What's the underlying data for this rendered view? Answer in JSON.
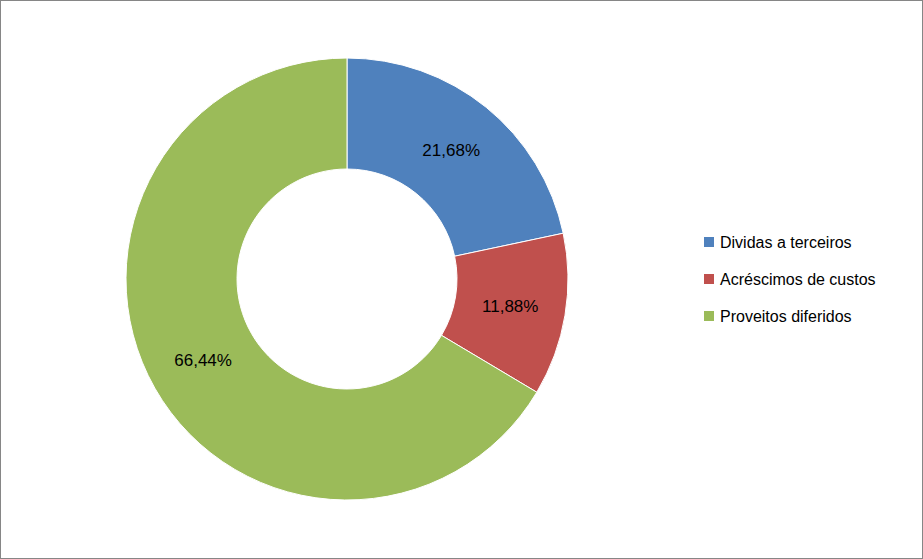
{
  "chart_data": {
    "type": "donut",
    "categories": [
      "Dividas a terceiros",
      "Acréscimos de custos",
      "Proveitos diferidos"
    ],
    "values": [
      21.68,
      11.88,
      66.44
    ],
    "value_labels": [
      "21,68%",
      "11,88%",
      "66,44%"
    ],
    "colors": [
      "#4f81bd",
      "#c0504d",
      "#9bbb59"
    ],
    "data_labels": true,
    "legend": "right"
  }
}
